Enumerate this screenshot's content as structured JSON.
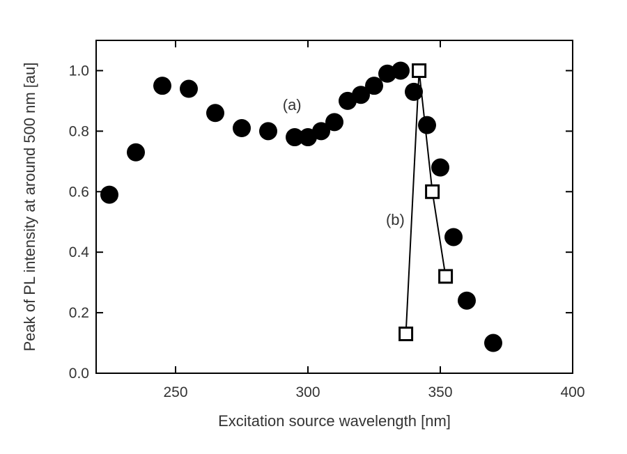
{
  "chart_data": {
    "type": "scatter",
    "title": "",
    "xlabel": "Excitation source wavelength [nm]",
    "ylabel": "Peak of PL intensity at around 500 nm [au]",
    "xlim": [
      220,
      400
    ],
    "ylim": [
      0.0,
      1.1
    ],
    "xticks": [
      250,
      300,
      350,
      400
    ],
    "xtick_labels": [
      "250",
      "300",
      "350",
      "400"
    ],
    "yticks": [
      0.0,
      0.2,
      0.4,
      0.6,
      0.8,
      1.0
    ],
    "ytick_labels": [
      "0.0",
      "0.2",
      "0.4",
      "0.6",
      "0.8",
      "1.0"
    ],
    "grid": false,
    "series": [
      {
        "label": "(a)",
        "marker": "filled-circle",
        "line": false,
        "color": "#000000",
        "x": [
          225,
          235,
          245,
          255,
          265,
          275,
          285,
          295,
          300,
          305,
          310,
          315,
          320,
          325,
          330,
          335,
          340,
          345,
          350,
          355,
          360,
          370
        ],
        "y": [
          0.59,
          0.73,
          0.95,
          0.94,
          0.86,
          0.81,
          0.8,
          0.78,
          0.78,
          0.8,
          0.83,
          0.9,
          0.92,
          0.95,
          0.99,
          1.0,
          0.93,
          0.82,
          0.68,
          0.45,
          0.24,
          0.1
        ]
      },
      {
        "label": "(b)",
        "marker": "open-square",
        "line": true,
        "color": "#000000",
        "x": [
          337,
          342,
          347,
          352
        ],
        "y": [
          0.13,
          1.0,
          0.6,
          0.32
        ]
      }
    ],
    "annotations": [
      {
        "text": "(a)",
        "x": 294,
        "y": 0.87
      },
      {
        "text": "(b)",
        "x": 333,
        "y": 0.49
      }
    ]
  }
}
